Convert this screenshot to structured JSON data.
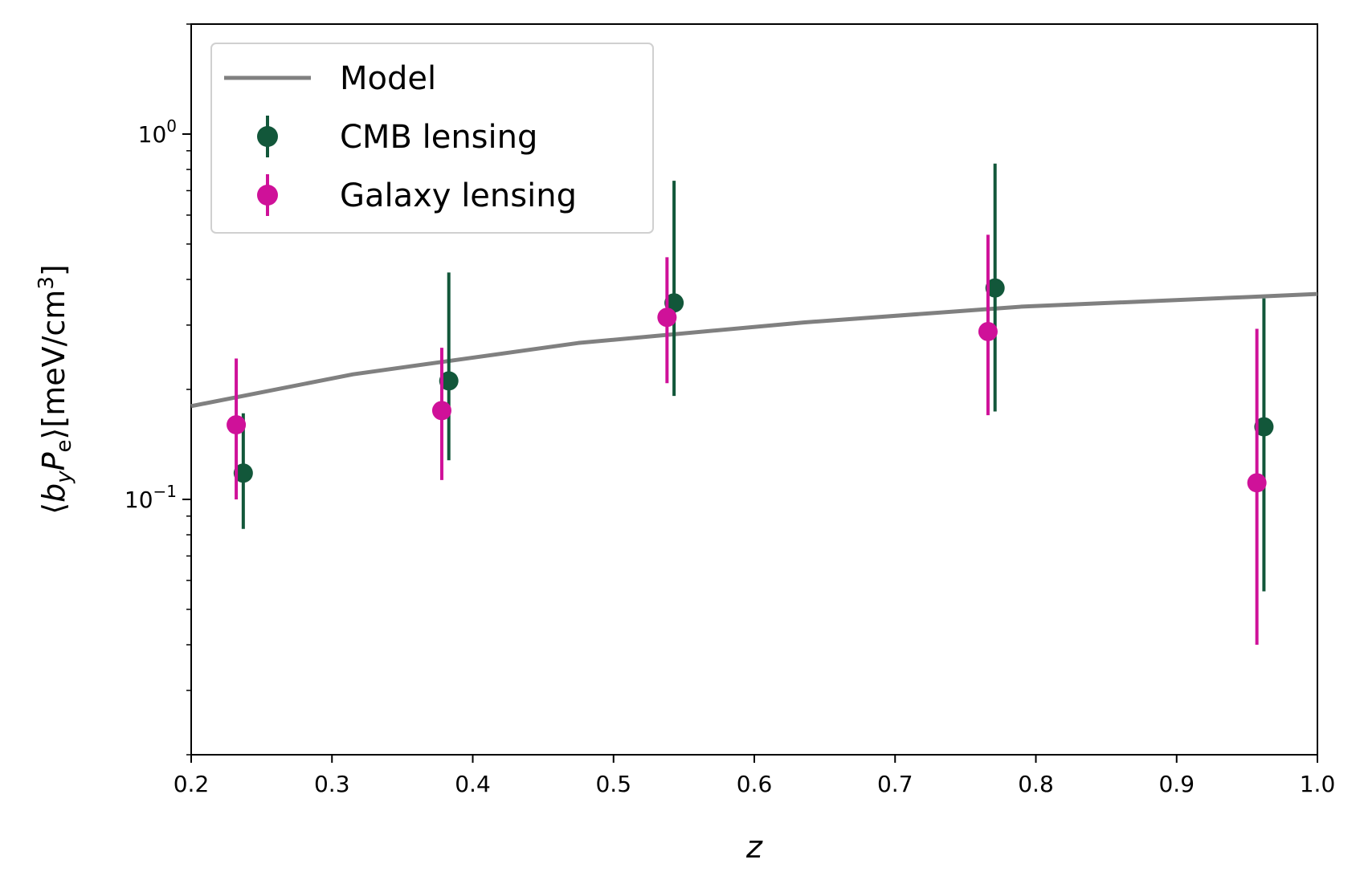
{
  "chart_data": {
    "type": "scatter",
    "xlabel": "z",
    "ylabel": {
      "open": "⟨",
      "b": "b",
      "b_sub": "y",
      "p": "P",
      "p_sub": "e",
      "close": "⟩",
      "unit_open": "[meV/cm",
      "unit_sup": "3",
      "unit_close": "]"
    },
    "xlim": [
      0.2,
      1.0
    ],
    "ylim": [
      0.02,
      2.0
    ],
    "yscale": "log",
    "xticks": [
      "0.2",
      "0.3",
      "0.4",
      "0.5",
      "0.6",
      "0.7",
      "0.8",
      "0.9",
      "1.0"
    ],
    "yticks_major": [
      {
        "value": 1.0,
        "base": "10",
        "exp": "0"
      },
      {
        "value": 0.1,
        "base": "10",
        "exp": "−1"
      }
    ],
    "grid": false,
    "legend_position": "top-left",
    "series": [
      {
        "name": "Model",
        "kind": "line",
        "color": "#808080",
        "x": [
          0.2,
          0.315,
          0.475,
          0.635,
          0.79,
          0.95,
          1.0
        ],
        "y": [
          0.18,
          0.22,
          0.268,
          0.305,
          0.337,
          0.358,
          0.365
        ]
      },
      {
        "name": "CMB lensing",
        "kind": "errorbar",
        "color": "#12573a",
        "x": [
          0.237,
          0.383,
          0.543,
          0.771,
          0.962
        ],
        "y": [
          0.118,
          0.211,
          0.345,
          0.379,
          0.158
        ],
        "ylow": [
          0.083,
          0.128,
          0.192,
          0.174,
          0.056
        ],
        "yhigh": [
          0.172,
          0.418,
          0.745,
          0.83,
          0.355
        ]
      },
      {
        "name": "Galaxy lensing",
        "kind": "errorbar",
        "color": "#cf1199",
        "x": [
          0.232,
          0.378,
          0.538,
          0.766,
          0.957
        ],
        "y": [
          0.16,
          0.175,
          0.315,
          0.288,
          0.111
        ],
        "ylow": [
          0.1,
          0.113,
          0.208,
          0.17,
          0.04
        ],
        "yhigh": [
          0.243,
          0.26,
          0.46,
          0.53,
          0.293
        ]
      }
    ]
  }
}
